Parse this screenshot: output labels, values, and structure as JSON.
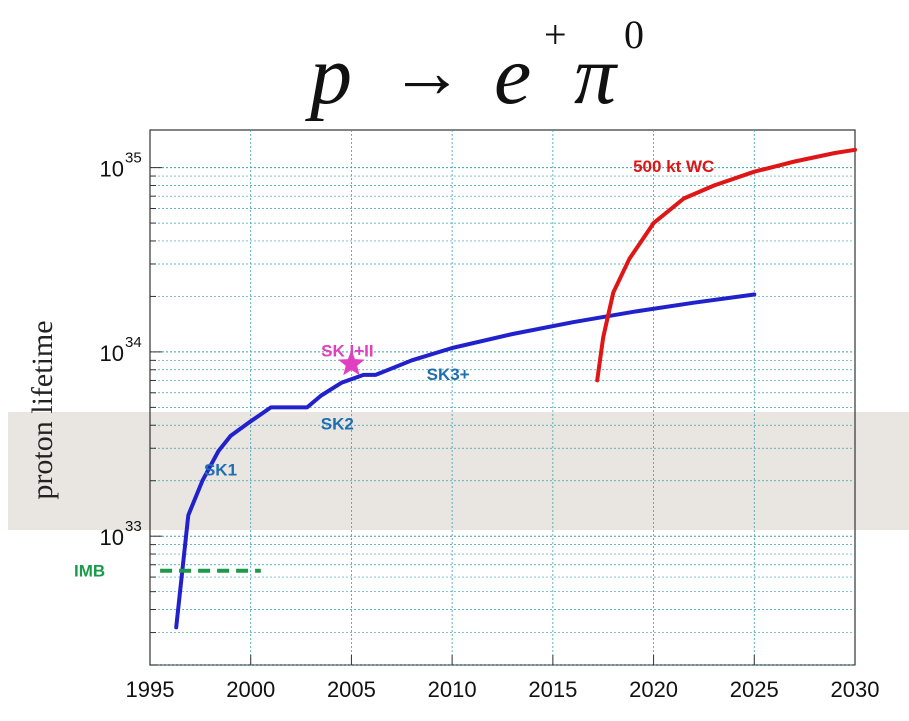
{
  "title": {
    "p": "p",
    "arrow": "→",
    "e": "e",
    "e_sup": "+",
    "pi": "π",
    "pi_sup": "0"
  },
  "colors": {
    "sk": "#2222cc",
    "wc": "#e01515",
    "imb": "#1a9a4a",
    "star": "#e040c0",
    "sk_label": "#1e6fb0",
    "grid": "#3aa0b0",
    "band": "#e9e6e2"
  },
  "chart_data": {
    "type": "line",
    "title": "p → e⁺π⁰",
    "xlabel": "",
    "ylabel": "proton lifetime",
    "xlim": [
      1995,
      2030
    ],
    "ylim": [
      2e+32,
      1.6e+35
    ],
    "yscale": "log",
    "grid": true,
    "x_ticks": [
      1995,
      2000,
      2005,
      2010,
      2015,
      2020,
      2025,
      2030
    ],
    "x_tick_labels": [
      "1995",
      "2000",
      "2005",
      "2010",
      "2015",
      "2020",
      "2025",
      "2030"
    ],
    "y_ticks": [
      {
        "value": 1e+33,
        "base": "10",
        "exp": "33"
      },
      {
        "value": 1e+34,
        "base": "10",
        "exp": "34"
      },
      {
        "value": 1e+35,
        "base": "10",
        "exp": "35"
      }
    ],
    "series": [
      {
        "label": "SK",
        "color": "#2222cc",
        "points": [
          [
            1996.3,
            3.2e+32
          ],
          [
            1996.9,
            1.3e+33
          ],
          [
            1997.6,
            2e+33
          ],
          [
            1998.4,
            2.9e+33
          ],
          [
            1999.0,
            3.5e+33
          ],
          [
            2000.0,
            4.2e+33
          ],
          [
            2001.0,
            5e+33
          ],
          [
            2002.8,
            5e+33
          ],
          [
            2003.5,
            5.8e+33
          ],
          [
            2004.5,
            6.8e+33
          ],
          [
            2005.6,
            7.5e+33
          ],
          [
            2006.2,
            7.5e+33
          ],
          [
            2008.0,
            9e+33
          ],
          [
            2010.0,
            1.05e+34
          ],
          [
            2013.0,
            1.25e+34
          ],
          [
            2016.0,
            1.45e+34
          ],
          [
            2019.0,
            1.65e+34
          ],
          [
            2022.0,
            1.85e+34
          ],
          [
            2025.0,
            2.05e+34
          ]
        ]
      },
      {
        "label": "500 kt WC",
        "color": "#e01515",
        "points": [
          [
            2017.2,
            7e+33
          ],
          [
            2017.5,
            1.2e+34
          ],
          [
            2018.0,
            2.1e+34
          ],
          [
            2018.8,
            3.2e+34
          ],
          [
            2020.0,
            5e+34
          ],
          [
            2021.5,
            6.8e+34
          ],
          [
            2023.0,
            8e+34
          ],
          [
            2025.0,
            9.5e+34
          ],
          [
            2027.0,
            1.08e+35
          ],
          [
            2029.0,
            1.2e+35
          ],
          [
            2030.0,
            1.25e+35
          ]
        ]
      },
      {
        "label": "IMB",
        "color": "#1a9a4a",
        "dashed": true,
        "points": [
          [
            1995.5,
            6.5e+32
          ],
          [
            2000.5,
            6.5e+32
          ]
        ]
      }
    ],
    "markers": [
      {
        "label": "SK I+II",
        "x": 2005.0,
        "y": 8.6e+33,
        "shape": "star",
        "color": "#e040c0"
      }
    ],
    "annotations": [
      {
        "text": "SK1",
        "x": 1998.5,
        "y": 2.3e+33,
        "color": "#1e6fb0"
      },
      {
        "text": "SK2",
        "x": 2004.3,
        "y": 4.1e+33,
        "color": "#1e6fb0"
      },
      {
        "text": "SK3+",
        "x": 2009.8,
        "y": 7.6e+33,
        "color": "#1e6fb0"
      },
      {
        "text": "500 kt WC",
        "x": 2021.0,
        "y": 1.02e+35,
        "color": "#e01515"
      },
      {
        "text": "SK I+II",
        "x": 2004.8,
        "y": 1.02e+34,
        "color": "#e040c0"
      },
      {
        "text": "IMB",
        "x": 1992.0,
        "y": 6.5e+32,
        "color": "#1a9a4a"
      }
    ]
  }
}
